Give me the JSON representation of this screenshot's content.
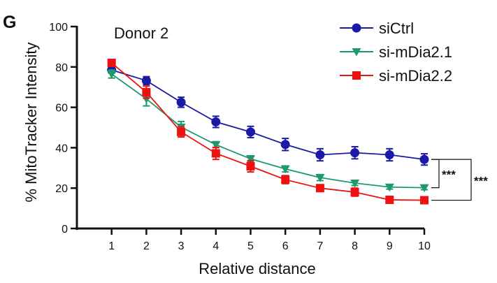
{
  "panel_label": "G",
  "chart_data": {
    "type": "line",
    "title": "Donor 2",
    "xlabel": "Relative distance",
    "ylabel": "% MitoTracker Intensity",
    "x": [
      1,
      2,
      3,
      4,
      5,
      6,
      7,
      8,
      9,
      10
    ],
    "xlim": [
      0,
      10
    ],
    "ylim": [
      0,
      100
    ],
    "yticks": [
      0,
      20,
      40,
      60,
      80,
      100
    ],
    "grid": false,
    "legend_position": "top-right",
    "series": [
      {
        "name": "siCtrl",
        "color": "#1a1aa6",
        "marker": "circle",
        "values": [
          78.5,
          73.2,
          62.5,
          52.8,
          47.8,
          41.6,
          36.5,
          37.5,
          36.5,
          34.2
        ],
        "errors": [
          1.5,
          2.0,
          2.5,
          2.8,
          2.8,
          3.0,
          3.0,
          3.0,
          3.0,
          2.8
        ]
      },
      {
        "name": "si-mDia2.1",
        "color": "#1c9a6a",
        "marker": "triangle-down",
        "values": [
          76.5,
          64.2,
          50.2,
          41.5,
          34.5,
          29.5,
          25.2,
          22.5,
          20.5,
          20.2
        ],
        "errors": [
          2.0,
          3.5,
          2.8,
          1.5,
          1.5,
          1.5,
          1.5,
          1.2,
          1.0,
          1.0
        ]
      },
      {
        "name": "si-mDia2.2",
        "color": "#ee1111",
        "marker": "square",
        "values": [
          82.0,
          67.5,
          47.8,
          37.2,
          30.8,
          24.2,
          20.0,
          18.0,
          14.2,
          14.0
        ],
        "errors": [
          1.0,
          3.0,
          2.5,
          3.0,
          2.8,
          2.0,
          1.5,
          2.0,
          0.8,
          0.5
        ]
      }
    ],
    "annotations": [
      {
        "text": "***",
        "between": [
          "siCtrl",
          "si-mDia2.1"
        ]
      },
      {
        "text": "***",
        "between": [
          "siCtrl",
          "si-mDia2.2"
        ]
      }
    ]
  }
}
